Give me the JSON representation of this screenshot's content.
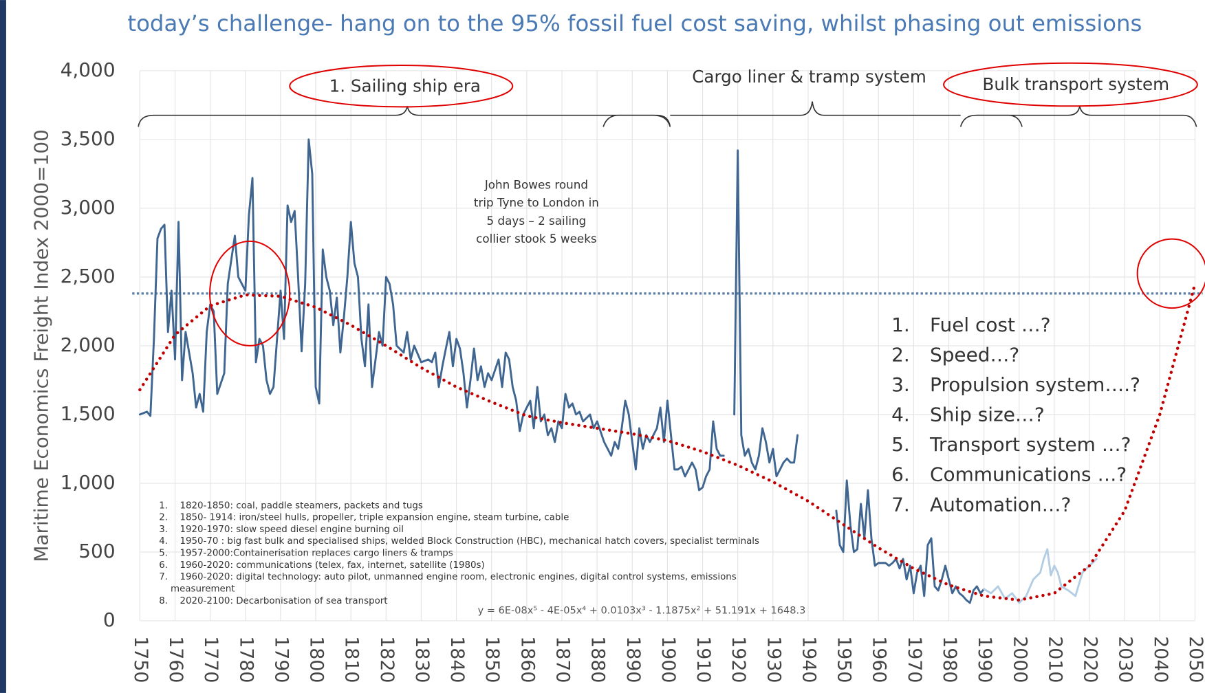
{
  "chart_data": {
    "type": "line",
    "title": "today’s challenge- hang on to the 95% fossil fuel cost saving, whilst phasing out emissions",
    "y_label": "Maritime Economics Freight Index 2000=100",
    "xlim": [
      1750,
      2050
    ],
    "ylim": [
      0,
      4000
    ],
    "xticks": [
      1750,
      1760,
      1770,
      1780,
      1790,
      1800,
      1810,
      1820,
      1830,
      1840,
      1850,
      1860,
      1870,
      1880,
      1890,
      1900,
      1910,
      1920,
      1930,
      1940,
      1950,
      1960,
      1970,
      1980,
      1990,
      2000,
      2010,
      2020,
      2030,
      2040,
      2050
    ],
    "yticks": [
      0,
      {
        "value": 500,
        "label": "500"
      },
      {
        "value": 1000,
        "label": "1,000"
      },
      {
        "value": 1500,
        "label": "1,500"
      },
      {
        "value": 2000,
        "label": "2,000"
      },
      {
        "value": 2500,
        "label": "2,500"
      },
      {
        "value": 3000,
        "label": "3,000"
      },
      {
        "value": 3500,
        "label": "3,500"
      },
      {
        "value": 4000,
        "label": "4,000"
      }
    ],
    "grid": true,
    "series": [
      {
        "color": "#3f6591",
        "style": "solid",
        "x": [
          1750,
          1752,
          1753,
          1754,
          1755,
          1756,
          1757,
          1758,
          1759,
          1760,
          1761,
          1762,
          1763,
          1765,
          1766,
          1767,
          1768,
          1769,
          1770,
          1771,
          1772,
          1774,
          1775,
          1777,
          1778,
          1780,
          1781,
          1782,
          1783,
          1784,
          1785,
          1786,
          1787,
          1788,
          1790,
          1791,
          1792,
          1793,
          1794,
          1795,
          1796,
          1797,
          1798,
          1799,
          1800,
          1801,
          1802,
          1803,
          1804,
          1805,
          1806,
          1807,
          1808,
          1809,
          1810,
          1811,
          1812,
          1813,
          1814,
          1815,
          1816,
          1818,
          1819,
          1820,
          1821,
          1822,
          1823,
          1825,
          1826,
          1827,
          1828,
          1830,
          1832,
          1833,
          1834,
          1835,
          1836,
          1837,
          1838,
          1839,
          1840,
          1841,
          1842,
          1843,
          1844,
          1845,
          1846,
          1847,
          1848,
          1849,
          1850,
          1852,
          1853,
          1854,
          1855,
          1856,
          1857,
          1858,
          1859,
          1860,
          1861,
          1862,
          1863,
          1864,
          1865,
          1866,
          1867,
          1868,
          1869,
          1870,
          1871,
          1872,
          1873,
          1874,
          1875,
          1876,
          1878,
          1879,
          1880,
          1882,
          1884,
          1885,
          1886,
          1887,
          1888,
          1889,
          1890,
          1891,
          1892,
          1893,
          1894,
          1895,
          1896,
          1897,
          1898,
          1899,
          1900,
          1901,
          1902,
          1903,
          1904,
          1905,
          1906,
          1907,
          1908,
          1909,
          1910,
          1911,
          1912,
          1913,
          1914,
          1915,
          1916,
          1917,
          1919,
          1920,
          1921,
          1922,
          1923,
          1924,
          1925,
          1926,
          1927,
          1928,
          1929,
          1930,
          1931,
          1932,
          1933,
          1934,
          1935,
          1936,
          1937,
          1938,
          1948,
          1949,
          1950,
          1951,
          1952,
          1953,
          1954,
          1955,
          1956,
          1957,
          1958,
          1959,
          1960,
          1962,
          1963,
          1964,
          1965,
          1966,
          1967,
          1968,
          1969,
          1970,
          1971,
          1972,
          1973,
          1974,
          1975,
          1976,
          1977,
          1978,
          1979,
          1980,
          1981,
          1982,
          1983,
          1984,
          1985,
          1986,
          1987,
          1988,
          1989,
          1990
        ],
        "values": [
          1500,
          1520,
          1490,
          2050,
          2780,
          2850,
          2880,
          2100,
          2400,
          1900,
          2900,
          1750,
          2100,
          1800,
          1550,
          1650,
          1520,
          2100,
          2300,
          2250,
          1650,
          1800,
          2450,
          2800,
          2500,
          2400,
          2950,
          3220,
          1880,
          2050,
          2000,
          1750,
          1650,
          1700,
          2400,
          2050,
          3020,
          2900,
          2980,
          2500,
          1960,
          2450,
          3500,
          3250,
          1700,
          1580,
          2700,
          2500,
          2400,
          2150,
          2350,
          1950,
          2200,
          2500,
          2900,
          2600,
          2500,
          2050,
          1850,
          2300,
          1700,
          2100,
          2000,
          2500,
          2450,
          2300,
          2000,
          1950,
          2100,
          1900,
          2000,
          1880,
          1900,
          1880,
          1950,
          1700,
          1850,
          1980,
          2100,
          1850,
          2050,
          1980,
          1800,
          1550,
          1750,
          1980,
          1750,
          1850,
          1700,
          1800,
          1750,
          1900,
          1700,
          1950,
          1900,
          1700,
          1600,
          1380,
          1500,
          1550,
          1600,
          1400,
          1700,
          1450,
          1500,
          1350,
          1400,
          1300,
          1450,
          1400,
          1650,
          1550,
          1580,
          1500,
          1520,
          1450,
          1500,
          1400,
          1450,
          1300,
          1200,
          1300,
          1250,
          1400,
          1600,
          1500,
          1300,
          1100,
          1400,
          1250,
          1350,
          1300,
          1350,
          1400,
          1550,
          1300,
          1600,
          1350,
          1100,
          1100,
          1120,
          1050,
          1100,
          1150,
          1100,
          950,
          970,
          1050,
          1100,
          1450,
          1250,
          1200,
          1200,
          null,
          1500,
          3420,
          1350,
          1200,
          1250,
          1150,
          1100,
          1200,
          1400,
          1300,
          1150,
          1250,
          1050,
          1100,
          1150,
          1180,
          1150,
          1150,
          1350,
          null,
          800,
          550,
          500,
          1020,
          700,
          500,
          520,
          850,
          600,
          950,
          600,
          400,
          420,
          420,
          400,
          420,
          450,
          380,
          450,
          300,
          400,
          200,
          350,
          400,
          180,
          550,
          600,
          250,
          220,
          300,
          400,
          300,
          200,
          250,
          200,
          180,
          150,
          130,
          220,
          250,
          200,
          230
        ]
      },
      {
        "color": "#b3cde4",
        "style": "solid",
        "x": [
          1990,
          1992,
          1994,
          1996,
          1998,
          2000,
          2002,
          2004,
          2006,
          2007,
          2008,
          2009,
          2010,
          2011,
          2012,
          2014,
          2016,
          2018,
          2020,
          2022
        ],
        "values": [
          230,
          200,
          250,
          160,
          200,
          130,
          180,
          300,
          350,
          450,
          520,
          330,
          400,
          350,
          250,
          220,
          180,
          350,
          400,
          450
        ]
      },
      {
        "color": "#c00000",
        "style": "dotted",
        "x": [
          1750,
          1760,
          1770,
          1780,
          1790,
          1800,
          1810,
          1820,
          1830,
          1840,
          1850,
          1860,
          1870,
          1880,
          1890,
          1900,
          1910,
          1920,
          1930,
          1940,
          1950,
          1960,
          1970,
          1980,
          1990,
          2000,
          2010,
          2020,
          2030,
          2040,
          2050
        ],
        "values": [
          1680,
          2080,
          2290,
          2370,
          2360,
          2280,
          2150,
          2000,
          1840,
          1700,
          1590,
          1490,
          1440,
          1400,
          1360,
          1310,
          1230,
          1130,
          1010,
          870,
          700,
          530,
          380,
          260,
          180,
          150,
          200,
          400,
          800,
          1500,
          2450
        ]
      }
    ],
    "reference_line": {
      "value": 2380,
      "color": "#5b7fa8"
    },
    "annotations": {
      "sailing": "1. Sailing ship era",
      "cargo": "Cargo liner & tramp system",
      "bulk": "Bulk transport system",
      "bowes": [
        "John Bowes round",
        "trip Tyne to London in",
        "5 days – 2 sailing",
        "collier stook 5 weeks"
      ],
      "equation": "y = 6E-08x⁵ - 4E-05x⁴ + 0.0103x³ - 1.1875x² + 51.191x + 1648.3",
      "questions": [
        {
          "n": "1.",
          "text": "Fuel cost …?"
        },
        {
          "n": "2.",
          "text": "Speed…?"
        },
        {
          "n": "3.",
          "text": "Propulsion system….?"
        },
        {
          "n": "4.",
          "text": "Ship size…?"
        },
        {
          "n": "5.",
          "text": "Transport system …?"
        },
        {
          "n": "6.",
          "text": "Communications …?"
        },
        {
          "n": "7.",
          "text": "Automation…?"
        }
      ],
      "notes": [
        {
          "n": "1.",
          "text": "1820-1850: coal, paddle steamers, packets and tugs"
        },
        {
          "n": "2.",
          "text": "1850- 1914: iron/steel hulls, propeller, triple expansion engine, steam turbine, cable"
        },
        {
          "n": "3.",
          "text": "1920-1970: slow speed diesel engine burning oil"
        },
        {
          "n": "4.",
          "text": "1950-70 : big fast bulk and specialised ships, welded Block Construction (HBC), mechanical hatch covers, specialist terminals"
        },
        {
          "n": "5.",
          "text": "1957-2000:Containerisation replaces cargo liners & tramps"
        },
        {
          "n": "6.",
          "text": "1960-2020: communications (telex, fax, internet, satellite (1980s)"
        },
        {
          "n": "7.",
          "text": "1960-2020: digital technology:  auto pilot, unmanned engine room, electronic engines, digital control systems, emissions"
        },
        {
          "text": "measurement"
        },
        {
          "n": "8.",
          "text": "2020-2100: Decarbonisation of sea transport"
        }
      ]
    }
  }
}
